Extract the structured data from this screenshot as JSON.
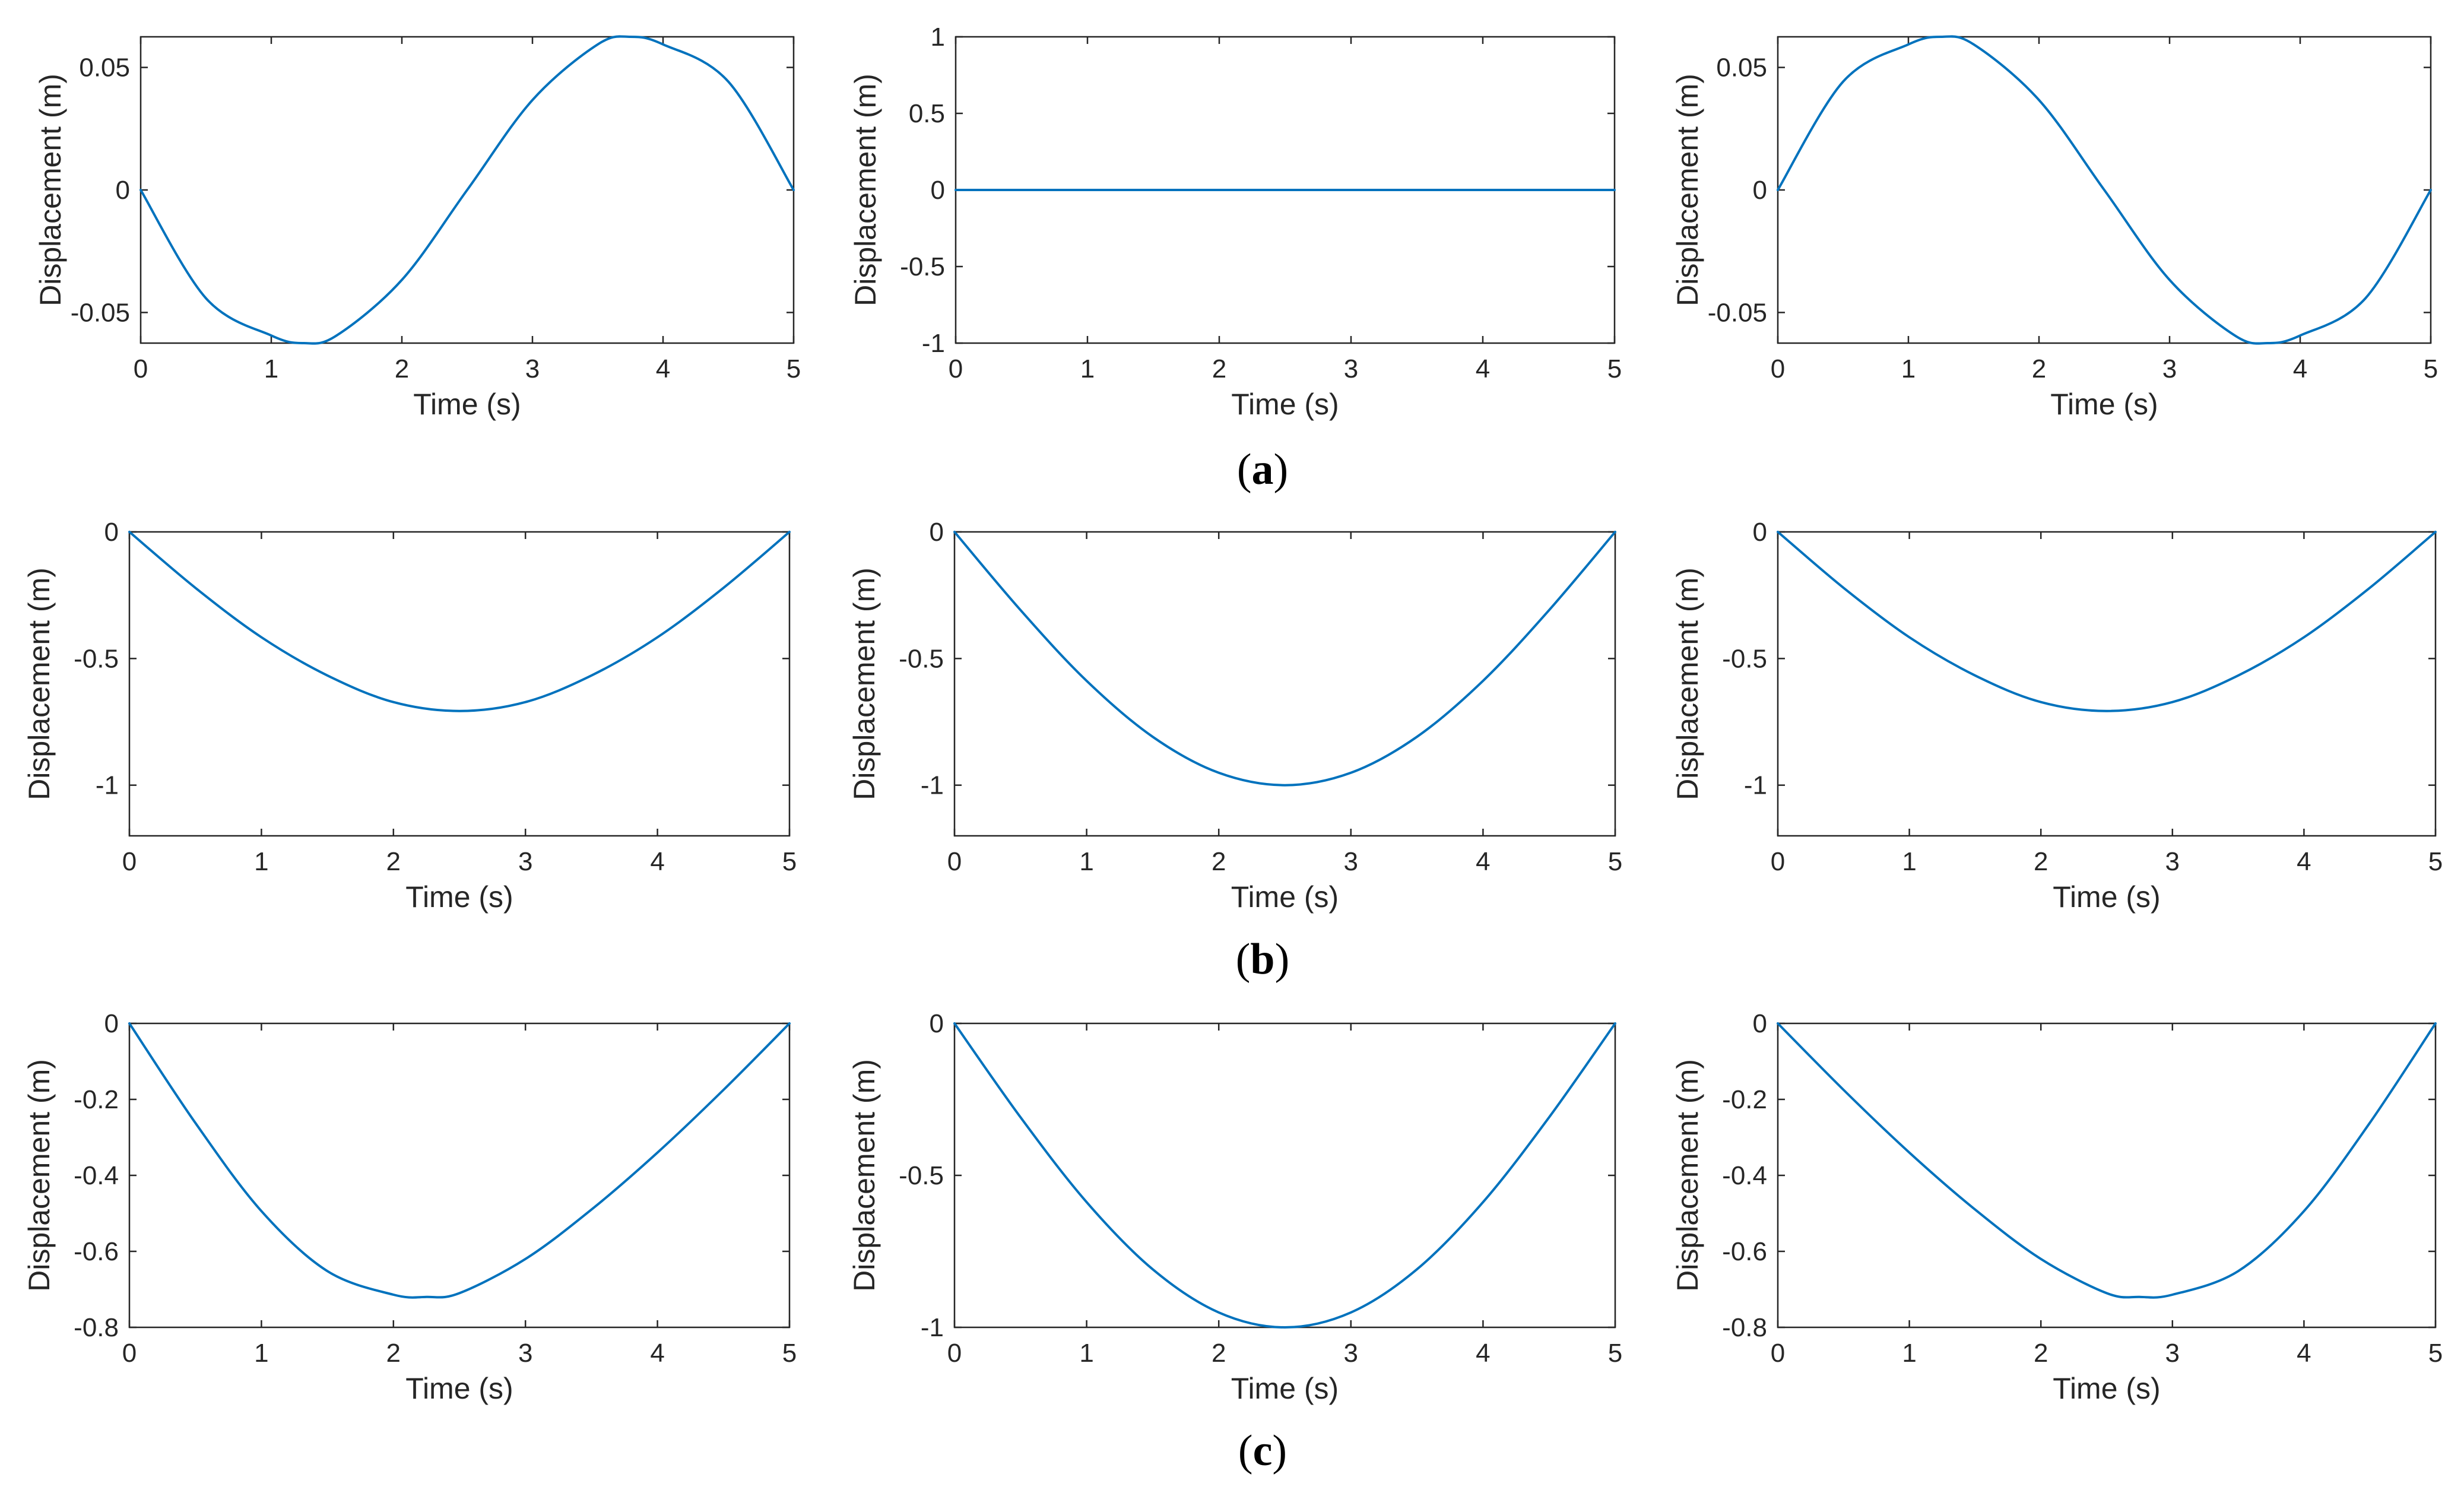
{
  "figure": {
    "line_color": "#0072BD",
    "axis_color": "#262626",
    "group_labels": [
      {
        "open": "(",
        "letter": "a",
        "close": ")"
      },
      {
        "open": "(",
        "letter": "b",
        "close": ")"
      },
      {
        "open": "(",
        "letter": "c",
        "close": ")"
      }
    ]
  },
  "chart_data": [
    {
      "type": "line",
      "group": "a",
      "xlabel": "Time (s)",
      "ylabel": "Displacement (m)",
      "xlim": [
        0,
        5
      ],
      "ylim": [
        -0.0625,
        0.0625
      ],
      "xticks": [
        0,
        1,
        2,
        3,
        4,
        5
      ],
      "xticklabels": [
        "0",
        "1",
        "2",
        "3",
        "4",
        "5"
      ],
      "yticks": [
        -0.05,
        0,
        0.05
      ],
      "yticklabels": [
        "-0.05",
        "0",
        "0.05"
      ],
      "series": [
        {
          "x": [
            0,
            0.5,
            1.0,
            1.25,
            1.5,
            2.0,
            2.5,
            3.0,
            3.5,
            3.75,
            4.0,
            4.5,
            5.0
          ],
          "y": [
            0,
            -0.0442,
            -0.0594,
            -0.0625,
            -0.0594,
            -0.0367,
            0,
            0.0367,
            0.0594,
            0.0625,
            0.0594,
            0.0442,
            0
          ]
        }
      ]
    },
    {
      "type": "line",
      "group": "a",
      "xlabel": "Time (s)",
      "ylabel": "Displacement (m)",
      "xlim": [
        0,
        5
      ],
      "ylim": [
        -1,
        1
      ],
      "xticks": [
        0,
        1,
        2,
        3,
        4,
        5
      ],
      "xticklabels": [
        "0",
        "1",
        "2",
        "3",
        "4",
        "5"
      ],
      "yticks": [
        -1,
        -0.5,
        0,
        0.5,
        1
      ],
      "yticklabels": [
        "-1",
        "-0.5",
        "0",
        "0.5",
        "1"
      ],
      "series": [
        {
          "x": [
            0,
            5
          ],
          "y": [
            0,
            0
          ]
        }
      ]
    },
    {
      "type": "line",
      "group": "a",
      "xlabel": "Time (s)",
      "ylabel": "Displacement (m)",
      "xlim": [
        0,
        5
      ],
      "ylim": [
        -0.0625,
        0.0625
      ],
      "xticks": [
        0,
        1,
        2,
        3,
        4,
        5
      ],
      "xticklabels": [
        "0",
        "1",
        "2",
        "3",
        "4",
        "5"
      ],
      "yticks": [
        -0.05,
        0,
        0.05
      ],
      "yticklabels": [
        "-0.05",
        "0",
        "0.05"
      ],
      "series": [
        {
          "x": [
            0,
            0.5,
            1.0,
            1.25,
            1.5,
            2.0,
            2.5,
            3.0,
            3.5,
            3.75,
            4.0,
            4.5,
            5.0
          ],
          "y": [
            0,
            0.0442,
            0.0594,
            0.0625,
            0.0594,
            0.0367,
            0,
            -0.0367,
            -0.0594,
            -0.0625,
            -0.0594,
            -0.0442,
            0
          ]
        }
      ]
    },
    {
      "type": "line",
      "group": "b",
      "xlabel": "Time (s)",
      "ylabel": "Displacement (m)",
      "xlim": [
        0,
        5
      ],
      "ylim": [
        -1.2,
        0
      ],
      "xticks": [
        0,
        1,
        2,
        3,
        4,
        5
      ],
      "xticklabels": [
        "0",
        "1",
        "2",
        "3",
        "4",
        "5"
      ],
      "yticks": [
        -1,
        -0.5,
        0
      ],
      "yticklabels": [
        "-1",
        "-0.5",
        "0"
      ],
      "series": [
        {
          "x": [
            0,
            0.5,
            1.0,
            1.5,
            2.0,
            2.5,
            3.0,
            3.5,
            4.0,
            4.5,
            5.0
          ],
          "y": [
            0,
            -0.221,
            -0.416,
            -0.567,
            -0.672,
            -0.707,
            -0.672,
            -0.567,
            -0.416,
            -0.221,
            0
          ]
        }
      ]
    },
    {
      "type": "line",
      "group": "b",
      "xlabel": "Time (s)",
      "ylabel": "Displacement (m)",
      "xlim": [
        0,
        5
      ],
      "ylim": [
        -1.2,
        0
      ],
      "xticks": [
        0,
        1,
        2,
        3,
        4,
        5
      ],
      "xticklabels": [
        "0",
        "1",
        "2",
        "3",
        "4",
        "5"
      ],
      "yticks": [
        -1,
        -0.5,
        0
      ],
      "yticklabels": [
        "-1",
        "-0.5",
        "0"
      ],
      "series": [
        {
          "x": [
            0,
            0.5,
            1.0,
            1.5,
            2.0,
            2.5,
            3.0,
            3.5,
            4.0,
            4.5,
            5.0
          ],
          "y": [
            0,
            -0.309,
            -0.588,
            -0.809,
            -0.951,
            -1.0,
            -0.951,
            -0.809,
            -0.588,
            -0.309,
            0
          ]
        }
      ]
    },
    {
      "type": "line",
      "group": "b",
      "xlabel": "Time (s)",
      "ylabel": "Displacement (m)",
      "xlim": [
        0,
        5
      ],
      "ylim": [
        -1.2,
        0
      ],
      "xticks": [
        0,
        1,
        2,
        3,
        4,
        5
      ],
      "xticklabels": [
        "0",
        "1",
        "2",
        "3",
        "4",
        "5"
      ],
      "yticks": [
        -1,
        -0.5,
        0
      ],
      "yticklabels": [
        "-1",
        "-0.5",
        "0"
      ],
      "series": [
        {
          "x": [
            0,
            0.5,
            1.0,
            1.5,
            2.0,
            2.5,
            3.0,
            3.5,
            4.0,
            4.5,
            5.0
          ],
          "y": [
            0,
            -0.221,
            -0.416,
            -0.567,
            -0.672,
            -0.707,
            -0.672,
            -0.567,
            -0.416,
            -0.221,
            0
          ]
        }
      ]
    },
    {
      "type": "line",
      "group": "c",
      "xlabel": "Time (s)",
      "ylabel": "Displacement (m)",
      "xlim": [
        0,
        5
      ],
      "ylim": [
        -0.8,
        0
      ],
      "xticks": [
        0,
        1,
        2,
        3,
        4,
        5
      ],
      "xticklabels": [
        "0",
        "1",
        "2",
        "3",
        "4",
        "5"
      ],
      "yticks": [
        -0.8,
        -0.6,
        -0.4,
        -0.2,
        0
      ],
      "yticklabels": [
        "-0.8",
        "-0.6",
        "-0.4",
        "-0.2",
        "0"
      ],
      "series": [
        {
          "x": [
            0,
            0.5,
            1.0,
            1.5,
            2.0,
            2.25,
            2.5,
            3.0,
            3.5,
            4.0,
            4.5,
            5.0
          ],
          "y": [
            0,
            -0.262,
            -0.494,
            -0.652,
            -0.714,
            -0.72,
            -0.71,
            -0.62,
            -0.49,
            -0.34,
            -0.175,
            0
          ]
        }
      ]
    },
    {
      "type": "line",
      "group": "c",
      "xlabel": "Time (s)",
      "ylabel": "Displacement (m)",
      "xlim": [
        0,
        5
      ],
      "ylim": [
        -1,
        0
      ],
      "xticks": [
        0,
        1,
        2,
        3,
        4,
        5
      ],
      "xticklabels": [
        "0",
        "1",
        "2",
        "3",
        "4",
        "5"
      ],
      "yticks": [
        -1,
        -0.5,
        0
      ],
      "yticklabels": [
        "-1",
        "-0.5",
        "0"
      ],
      "series": [
        {
          "x": [
            0,
            0.5,
            1.0,
            1.5,
            2.0,
            2.5,
            3.0,
            3.5,
            4.0,
            4.5,
            5.0
          ],
          "y": [
            0,
            -0.309,
            -0.588,
            -0.809,
            -0.951,
            -1.0,
            -0.951,
            -0.809,
            -0.588,
            -0.309,
            0
          ]
        }
      ]
    },
    {
      "type": "line",
      "group": "c",
      "xlabel": "Time (s)",
      "ylabel": "Displacement (m)",
      "xlim": [
        0,
        5
      ],
      "ylim": [
        -0.8,
        0
      ],
      "xticks": [
        0,
        1,
        2,
        3,
        4,
        5
      ],
      "xticklabels": [
        "0",
        "1",
        "2",
        "3",
        "4",
        "5"
      ],
      "yticks": [
        -0.8,
        -0.6,
        -0.4,
        -0.2,
        0
      ],
      "yticklabels": [
        "-0.8",
        "-0.6",
        "-0.4",
        "-0.2",
        "0"
      ],
      "series": [
        {
          "x": [
            0,
            0.5,
            1.0,
            1.5,
            2.0,
            2.5,
            2.75,
            3.0,
            3.5,
            4.0,
            4.5,
            5.0
          ],
          "y": [
            0,
            -0.175,
            -0.34,
            -0.49,
            -0.62,
            -0.71,
            -0.72,
            -0.714,
            -0.652,
            -0.494,
            -0.262,
            0
          ]
        }
      ]
    }
  ]
}
